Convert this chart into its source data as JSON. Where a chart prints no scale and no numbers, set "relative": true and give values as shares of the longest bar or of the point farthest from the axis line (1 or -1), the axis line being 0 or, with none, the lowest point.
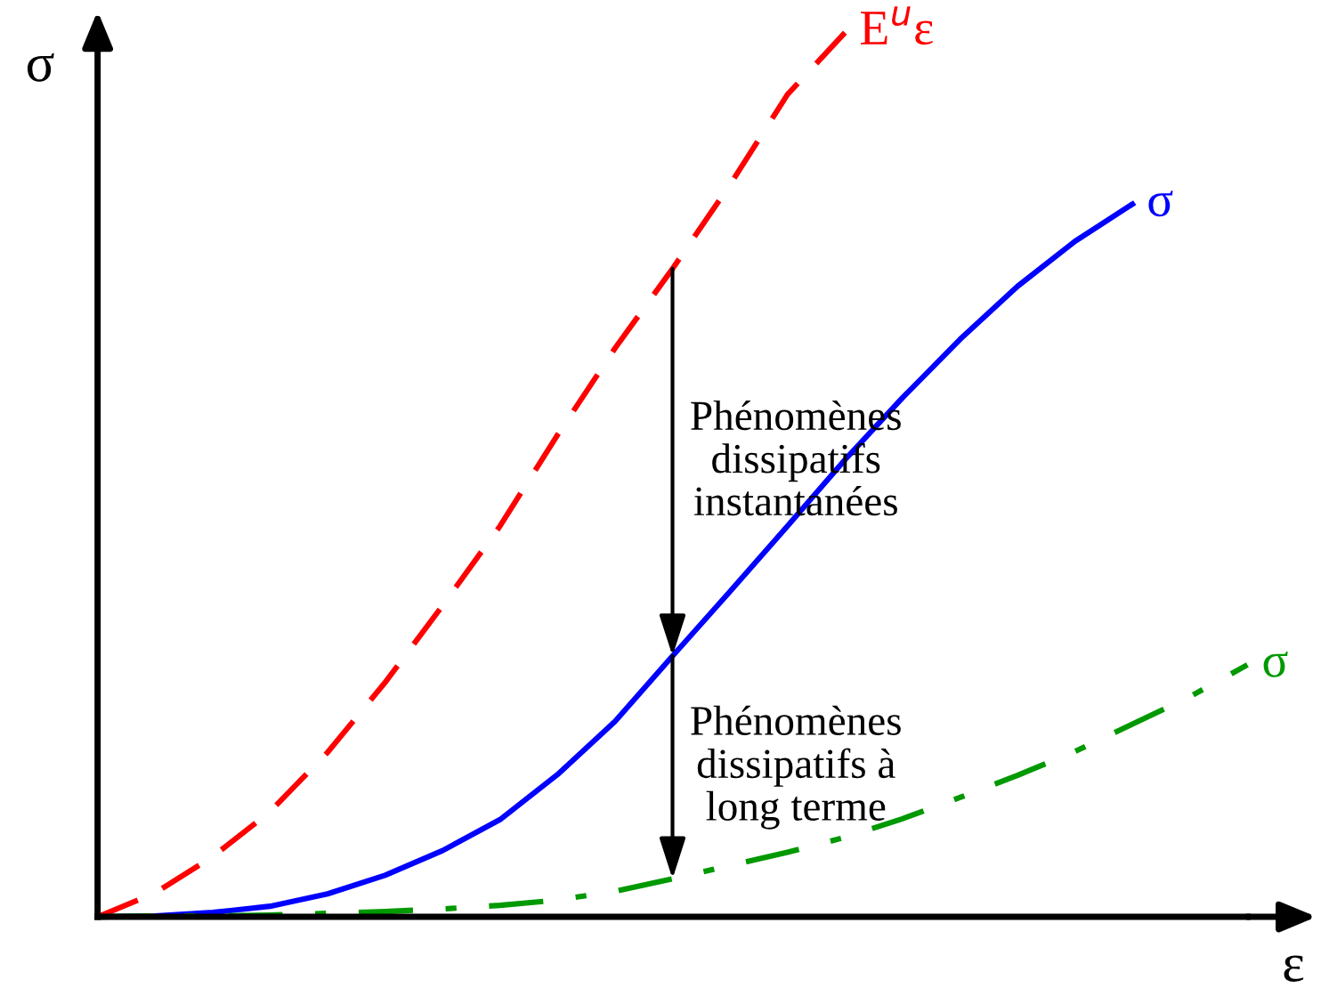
{
  "chart_data": {
    "type": "line",
    "relative": true,
    "xlabel": "ε",
    "ylabel": "σ",
    "tick_labels": false,
    "categories": [
      null,
      null,
      null,
      null,
      null,
      null,
      null,
      null,
      null,
      null,
      null,
      null,
      null,
      null,
      null,
      null,
      null,
      null,
      null,
      null,
      null
    ],
    "series": [
      {
        "name": "E$^{u}$ε",
        "color": "#ff0000",
        "line_style": "dashed",
        "values": [
          0,
          0.027,
          0.068,
          0.119,
          0.186,
          0.265,
          0.352,
          0.442,
          0.545,
          0.643,
          0.733,
          0.828,
          0.93,
          1,
          null,
          null,
          null,
          null,
          null,
          null,
          null
        ]
      },
      {
        "name": "σ",
        "color": "#0000ff",
        "line_style": "solid",
        "values": [
          0,
          0.001,
          0.005,
          0.012,
          0.026,
          0.047,
          0.075,
          0.11,
          0.161,
          0.221,
          0.295,
          0.368,
          0.442,
          0.517,
          0.587,
          0.653,
          0.713,
          0.764,
          0.806,
          null,
          null
        ]
      },
      {
        "name": "σ",
        "color": "#009900",
        "line_style": "dashdot",
        "values": [
          0,
          0.001,
          0.001,
          0.002,
          0.004,
          0.006,
          0.009,
          0.013,
          0.019,
          0.029,
          0.043,
          0.058,
          0.073,
          0.09,
          0.111,
          0.135,
          0.16,
          0.187,
          0.218,
          0.249,
          0.285
        ]
      }
    ],
    "annotations": [
      "Phénomènes\ndissipatifs\ninstantanées",
      "Phénomènes\ndissipatifs à\nlong terme"
    ]
  }
}
